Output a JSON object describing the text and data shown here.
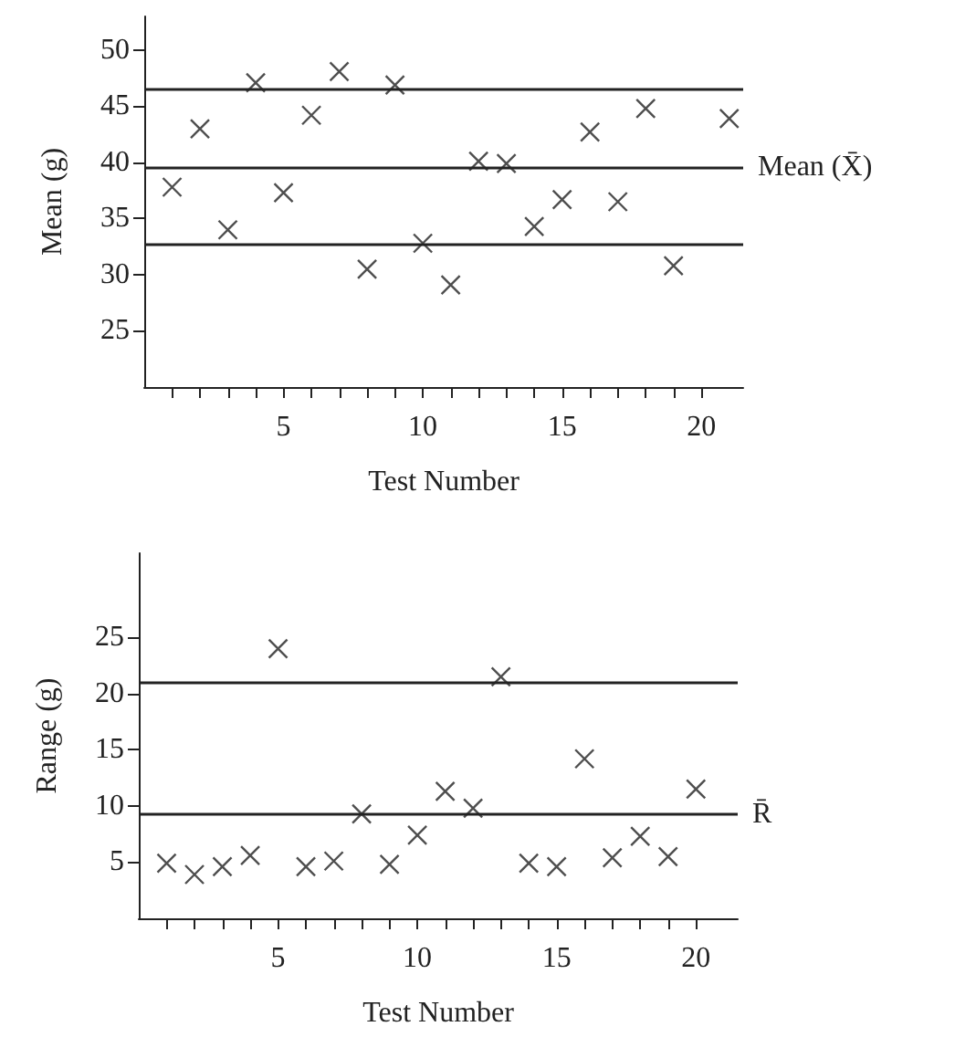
{
  "chart_data": [
    {
      "type": "scatter",
      "xlabel": "Test Number",
      "ylabel": "Mean (g)",
      "x": [
        1,
        2,
        3,
        4,
        5,
        6,
        7,
        8,
        9,
        10,
        11,
        12,
        13,
        14,
        15,
        16,
        17,
        18,
        19,
        21
      ],
      "values": [
        37.8,
        43.0,
        34.0,
        47.1,
        37.3,
        44.2,
        48.1,
        30.5,
        46.9,
        32.8,
        29.1,
        40.1,
        39.9,
        34.3,
        36.7,
        42.7,
        36.5,
        44.8,
        30.8,
        43.9
      ],
      "color": "#222222",
      "marker": "cross",
      "xlim": [
        0,
        21.5
      ],
      "ylim": [
        20,
        53
      ],
      "xticks": [
        {
          "value": 1,
          "label": null
        },
        {
          "value": 2,
          "label": null
        },
        {
          "value": 3,
          "label": null
        },
        {
          "value": 4,
          "label": null
        },
        {
          "value": 5,
          "label": "5"
        },
        {
          "value": 6,
          "label": null
        },
        {
          "value": 7,
          "label": null
        },
        {
          "value": 8,
          "label": null
        },
        {
          "value": 9,
          "label": null
        },
        {
          "value": 10,
          "label": "10"
        },
        {
          "value": 11,
          "label": null
        },
        {
          "value": 12,
          "label": null
        },
        {
          "value": 13,
          "label": null
        },
        {
          "value": 14,
          "label": null
        },
        {
          "value": 15,
          "label": "15"
        },
        {
          "value": 16,
          "label": null
        },
        {
          "value": 17,
          "label": null
        },
        {
          "value": 18,
          "label": null
        },
        {
          "value": 19,
          "label": null
        },
        {
          "value": 20,
          "label": "20"
        }
      ],
      "yticks": [
        25,
        30,
        35,
        40,
        45,
        50
      ],
      "ref_lines": [
        {
          "axis": "y",
          "value": 46.6,
          "label": null
        },
        {
          "axis": "y",
          "value": 39.6,
          "label": "Mean (X̄)"
        },
        {
          "axis": "y",
          "value": 32.7,
          "label": null
        }
      ]
    },
    {
      "type": "scatter",
      "xlabel": "Test Number",
      "ylabel": "Range (g)",
      "x": [
        1,
        2,
        3,
        4,
        5,
        6,
        7,
        8,
        9,
        10,
        11,
        12,
        13,
        14,
        15,
        16,
        17,
        18,
        19,
        20
      ],
      "values": [
        4.9,
        3.9,
        4.6,
        5.6,
        24.0,
        4.6,
        5.1,
        9.3,
        4.8,
        7.4,
        11.3,
        9.8,
        21.5,
        4.9,
        4.6,
        14.2,
        5.4,
        7.3,
        5.5,
        11.5
      ],
      "color": "#222222",
      "marker": "cross",
      "xlim": [
        0,
        21.5
      ],
      "ylim": [
        0,
        32.5
      ],
      "xticks": [
        {
          "value": 1,
          "label": null
        },
        {
          "value": 2,
          "label": null
        },
        {
          "value": 3,
          "label": null
        },
        {
          "value": 4,
          "label": null
        },
        {
          "value": 5,
          "label": "5"
        },
        {
          "value": 6,
          "label": null
        },
        {
          "value": 7,
          "label": null
        },
        {
          "value": 8,
          "label": null
        },
        {
          "value": 9,
          "label": null
        },
        {
          "value": 10,
          "label": "10"
        },
        {
          "value": 11,
          "label": null
        },
        {
          "value": 12,
          "label": null
        },
        {
          "value": 13,
          "label": null
        },
        {
          "value": 14,
          "label": null
        },
        {
          "value": 15,
          "label": "15"
        },
        {
          "value": 16,
          "label": null
        },
        {
          "value": 17,
          "label": null
        },
        {
          "value": 18,
          "label": null
        },
        {
          "value": 19,
          "label": null
        },
        {
          "value": 20,
          "label": "20"
        }
      ],
      "yticks": [
        5,
        10,
        15,
        20,
        25
      ],
      "ref_lines": [
        {
          "axis": "y",
          "value": 21.0,
          "label": null
        },
        {
          "axis": "y",
          "value": 9.3,
          "label": "R̄"
        }
      ]
    }
  ]
}
